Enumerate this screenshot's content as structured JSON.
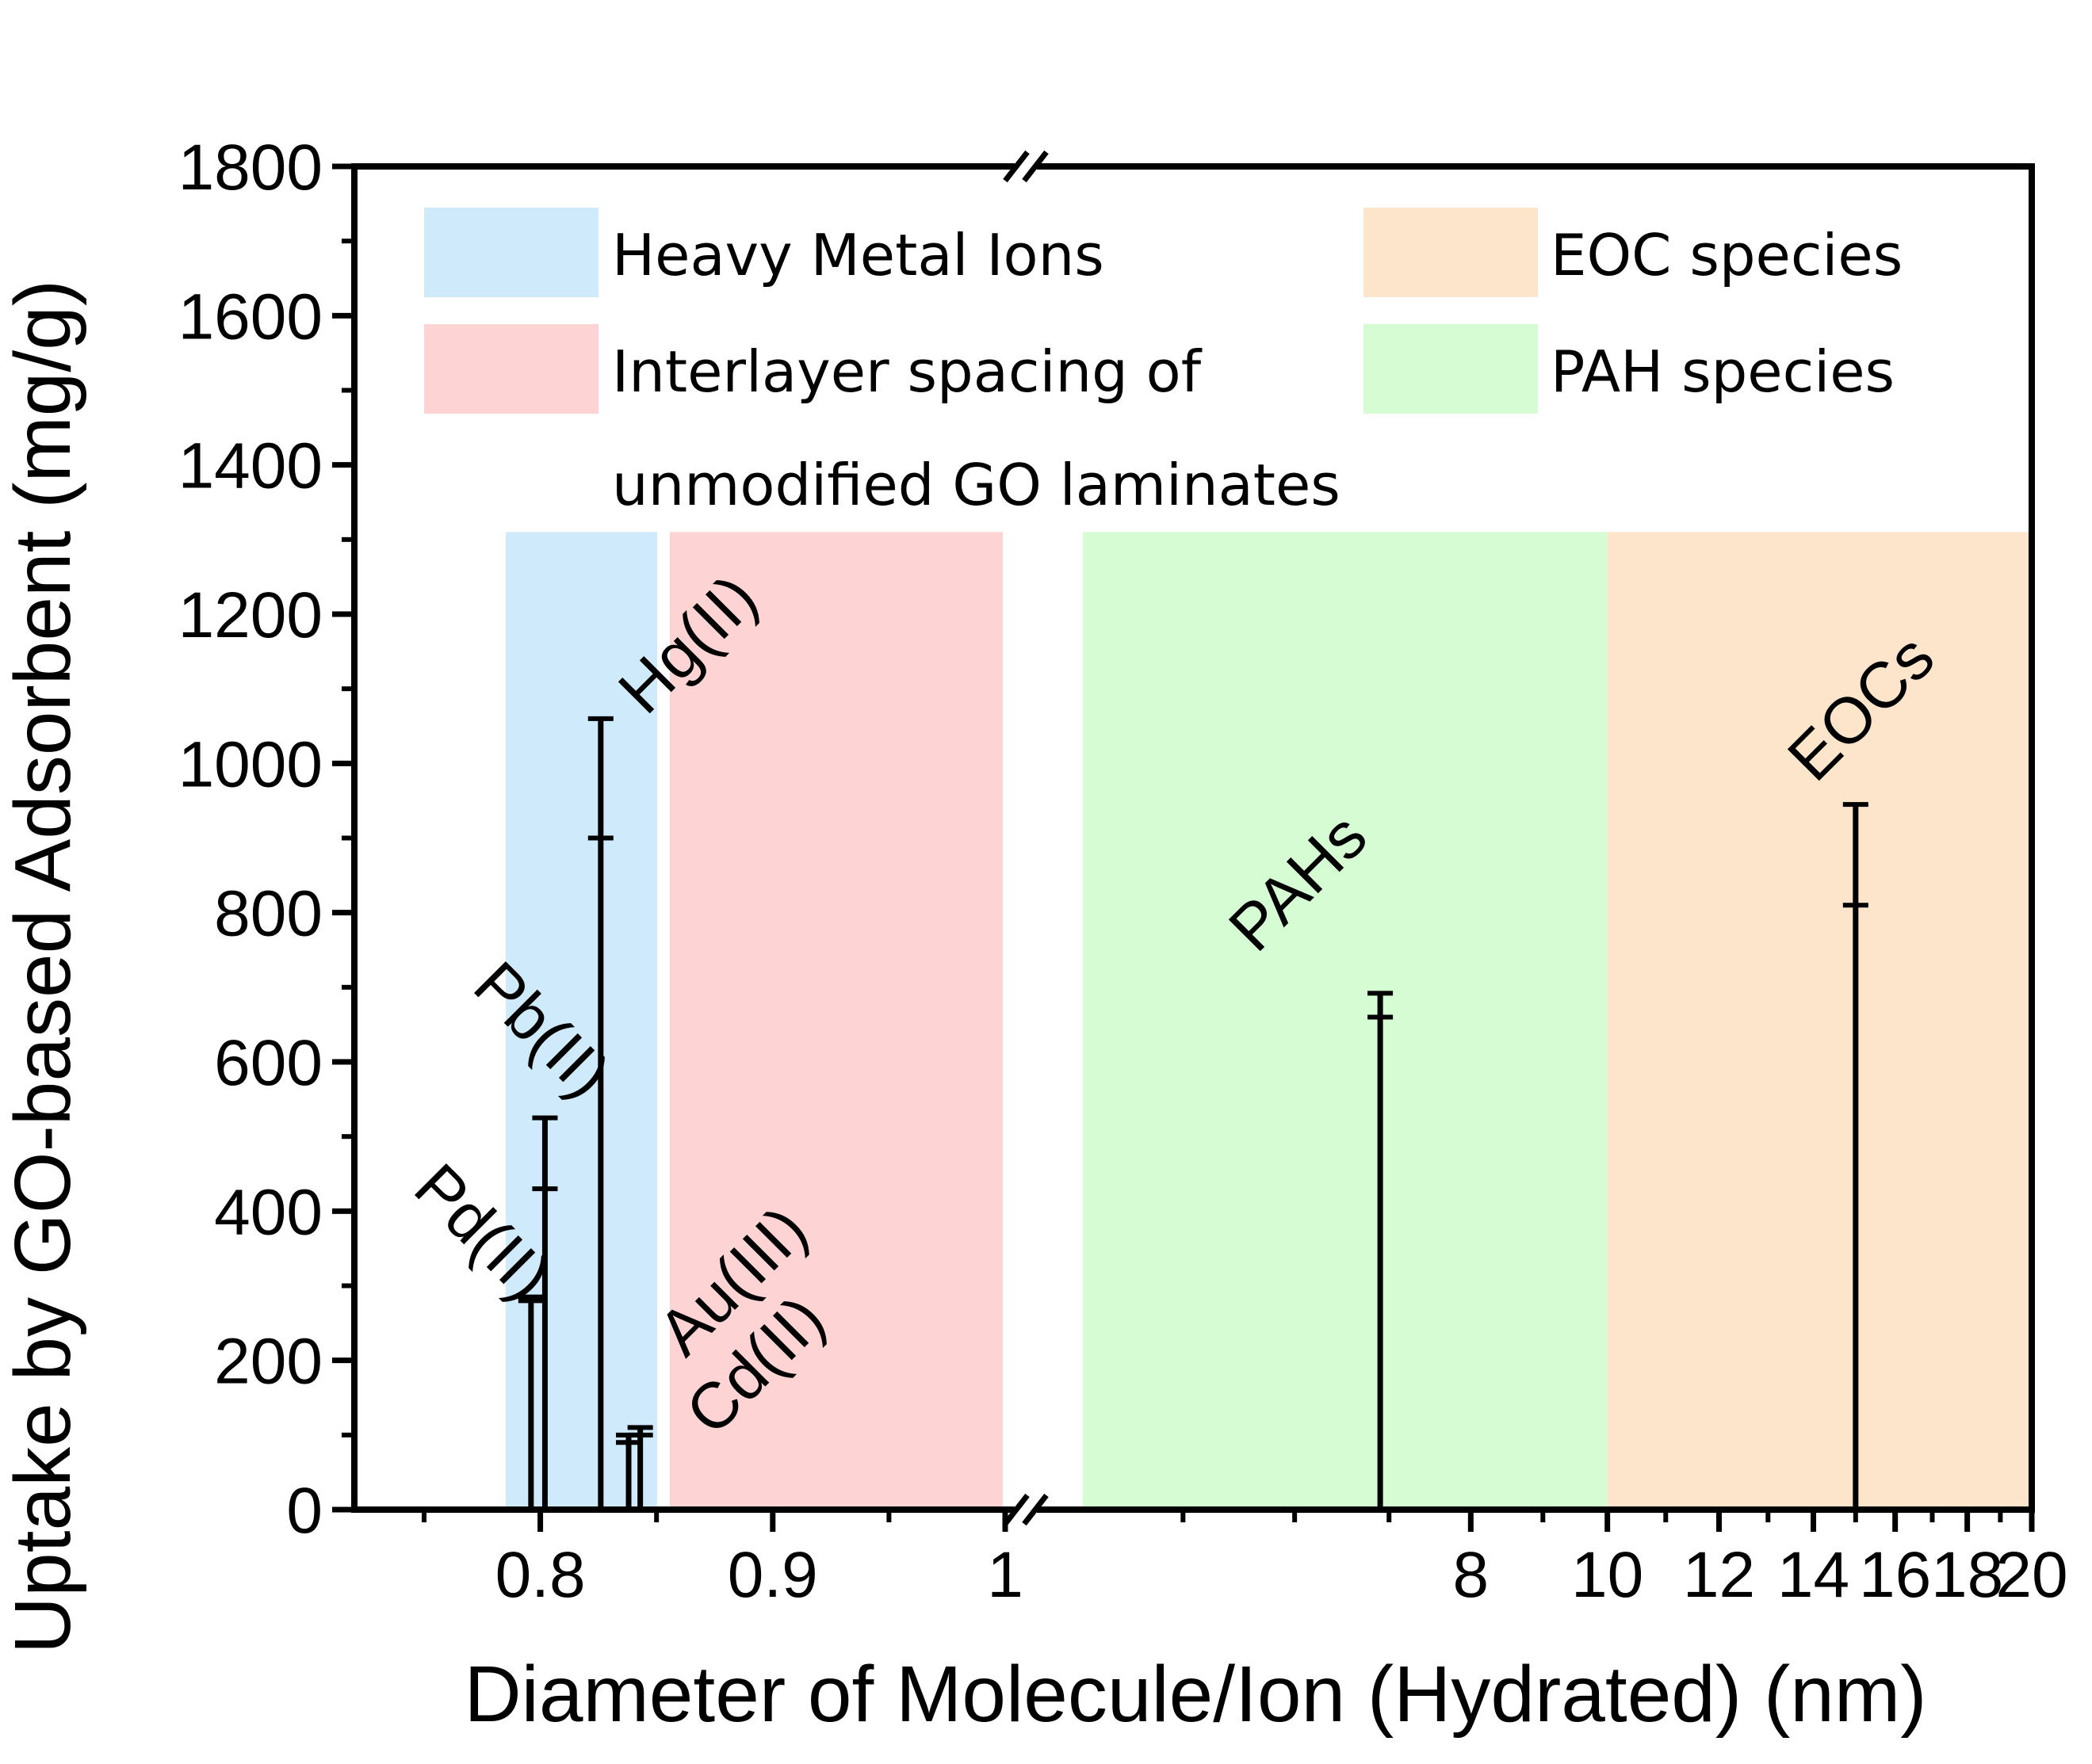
{
  "chart_data": {
    "type": "bar",
    "x_axis_type": "broken-axis",
    "xlabel": "Diameter of Molecule/Ion (Hydrated) (nm)",
    "ylabel": "Uptake by GO-based Adsorbent (mg/g)",
    "ylim": [
      0,
      1800
    ],
    "yticks": [
      0,
      200,
      400,
      600,
      800,
      1000,
      1200,
      1400,
      1600,
      1800
    ],
    "ytick_labels": [
      "0",
      "200",
      "400",
      "600",
      "800",
      "1000",
      "1200",
      "1400",
      "1600",
      "1800"
    ],
    "x_segments": [
      {
        "range": [
          0.72,
          1.0
        ],
        "tick_values": [
          0.8,
          0.9,
          1.0
        ],
        "tick_labels": [
          "0.8",
          "0.9",
          "1"
        ]
      },
      {
        "range": [
          4.0,
          20.0
        ],
        "tick_values": [
          8,
          10,
          12,
          14,
          16,
          18,
          20
        ],
        "tick_labels": [
          "8",
          "10",
          "12",
          "14",
          "16",
          "18",
          "20"
        ]
      }
    ],
    "regions": [
      {
        "key": "heavy",
        "name": "Heavy Metal Ions",
        "x_range": [
          0.786,
          0.855
        ],
        "y_top": 1310,
        "color": "#cfeafb"
      },
      {
        "key": "interlayer",
        "name": "Interlayer spacing of unmodified GO laminates",
        "x_range": [
          0.86,
          1.0
        ],
        "y_top": 1310,
        "color": "#fdd3d3"
      },
      {
        "key": "pah",
        "name": "PAH species",
        "x_range": [
          4.6,
          10.0
        ],
        "y_top": 1310,
        "color": "#d6fcd3"
      },
      {
        "key": "eoc",
        "name": "EOC species",
        "x_range": [
          10.0,
          20.0
        ],
        "y_top": 1310,
        "color": "#fde5cc"
      }
    ],
    "legend": [
      {
        "label": "Heavy Metal Ions",
        "region": "heavy"
      },
      {
        "label": "EOC species",
        "region": "eoc"
      },
      {
        "label": "Interlayer spacing of",
        "label_line2": "unmodified GO laminates",
        "region": "interlayer"
      },
      {
        "label": "PAH species",
        "region": "pah"
      }
    ],
    "series": [
      {
        "name": "Pd(II)",
        "x": 0.796,
        "value": 280,
        "error": 5
      },
      {
        "name": "Pb(II)",
        "x": 0.802,
        "value": 430,
        "error": 95
      },
      {
        "name": "Hg(II)",
        "x": 0.826,
        "value": 900,
        "error": 160
      },
      {
        "name": "Au(III)",
        "x": 0.838,
        "value": 90,
        "error": 10
      },
      {
        "name": "Cd(II)",
        "x": 0.843,
        "value": 100,
        "error": 10
      },
      {
        "name": "PAHs",
        "x": 6.9,
        "value": 660,
        "error": 32
      },
      {
        "name": "EOCs",
        "x": 15.0,
        "value": 810,
        "error": 135
      }
    ],
    "species_labels": [
      {
        "text": "Pd(II)",
        "series": "Pd(II)"
      },
      {
        "text": "Pb(II)",
        "series": "Pb(II)"
      },
      {
        "text": "Hg(II)",
        "series": "Hg(II)"
      },
      {
        "text": "Au(III)",
        "series": "Au(III)"
      },
      {
        "text": "Cd(II)",
        "series": "Cd(II)"
      },
      {
        "text": "PAHs",
        "series": "PAHs"
      },
      {
        "text": "EOCs",
        "series": "EOCs"
      }
    ]
  }
}
